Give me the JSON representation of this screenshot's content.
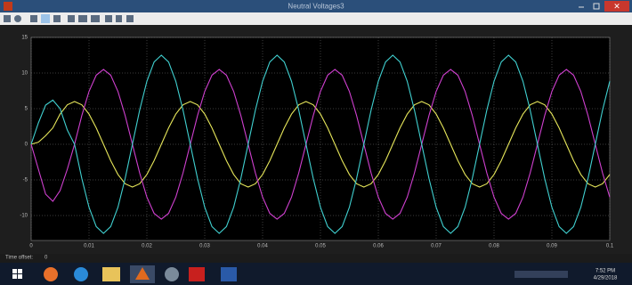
{
  "window": {
    "title": "Neutral Voltages3"
  },
  "status": {
    "label": "Time offset:",
    "value": "0"
  },
  "taskbar": {
    "time": "7:52 PM",
    "date": "4/29/2018"
  },
  "chart_data": {
    "type": "line",
    "x": [
      0,
      0.00125,
      0.0025,
      0.00375,
      0.005,
      0.00625,
      0.0075,
      0.00875,
      0.01,
      0.01125,
      0.0125,
      0.01375,
      0.015,
      0.01625,
      0.0175,
      0.01875,
      0.02,
      0.02125,
      0.0225,
      0.02375,
      0.025,
      0.02625,
      0.0275,
      0.02875,
      0.03,
      0.03125,
      0.0325,
      0.03375,
      0.035,
      0.03625,
      0.0375,
      0.03875,
      0.04,
      0.04125,
      0.0425,
      0.04375,
      0.045,
      0.04625,
      0.0475,
      0.04875,
      0.05,
      0.05125,
      0.0525,
      0.05375,
      0.055,
      0.05625,
      0.0575,
      0.05875,
      0.06,
      0.06125,
      0.0625,
      0.06375,
      0.065,
      0.06625,
      0.0675,
      0.06875,
      0.07,
      0.07125,
      0.0725,
      0.07375,
      0.075,
      0.07625,
      0.0775,
      0.07875,
      0.08,
      0.08125,
      0.0825,
      0.08375,
      0.085,
      0.08625,
      0.0875,
      0.08875,
      0.09,
      0.09125,
      0.0925,
      0.09375,
      0.095,
      0.09625,
      0.0975,
      0.09875,
      0.1
    ],
    "series": [
      {
        "color": "#e6e65a",
        "values": [
          0,
          0.3,
          1.2,
          2.3,
          4.24,
          5.54,
          6,
          5.54,
          4.24,
          2.3,
          0,
          -2.3,
          -4.24,
          -5.54,
          -6,
          -5.54,
          -4.24,
          -2.3,
          0,
          2.3,
          4.24,
          5.54,
          6,
          5.54,
          4.24,
          2.3,
          0,
          -2.3,
          -4.24,
          -5.54,
          -6,
          -5.54,
          -4.24,
          -2.3,
          0,
          2.3,
          4.24,
          5.54,
          6,
          5.54,
          4.24,
          2.3,
          0,
          -2.3,
          -4.24,
          -5.54,
          -6,
          -5.54,
          -4.24,
          -2.3,
          0,
          2.3,
          4.24,
          5.54,
          6,
          5.54,
          4.24,
          2.3,
          0,
          -2.3,
          -4.24,
          -5.54,
          -6,
          -5.54,
          -4.24,
          -2.3,
          0,
          2.3,
          4.24,
          5.54,
          6,
          5.54,
          4.24,
          2.3,
          0,
          -2.3,
          -4.24,
          -5.54,
          -6,
          -5.54,
          -4.24
        ]
      },
      {
        "color": "#d040d0",
        "values": [
          0,
          -3.5,
          -7,
          -8,
          -6.5,
          -3.5,
          0,
          4.02,
          7.42,
          9.7,
          10.5,
          9.7,
          7.42,
          4.02,
          0,
          -4.02,
          -7.42,
          -9.7,
          -10.5,
          -9.7,
          -7.42,
          -4.02,
          0,
          4.02,
          7.42,
          9.7,
          10.5,
          9.7,
          7.42,
          4.02,
          0,
          -4.02,
          -7.42,
          -9.7,
          -10.5,
          -9.7,
          -7.42,
          -4.02,
          0,
          4.02,
          7.42,
          9.7,
          10.5,
          9.7,
          7.42,
          4.02,
          0,
          -4.02,
          -7.42,
          -9.7,
          -10.5,
          -9.7,
          -7.42,
          -4.02,
          0,
          4.02,
          7.42,
          9.7,
          10.5,
          9.7,
          7.42,
          4.02,
          0,
          -4.02,
          -7.42,
          -9.7,
          -10.5,
          -9.7,
          -7.42,
          -4.02,
          0,
          4.02,
          7.42,
          9.7,
          10.5,
          9.7,
          7.42,
          4.02,
          0,
          -4.02,
          -7.42
        ]
      },
      {
        "color": "#40d0d0",
        "values": [
          0,
          3,
          5.5,
          6.2,
          5,
          2,
          0,
          -4.78,
          -8.84,
          -11.55,
          -12.5,
          -11.55,
          -8.84,
          -4.78,
          0,
          4.78,
          8.84,
          11.55,
          12.5,
          11.55,
          8.84,
          4.78,
          0,
          -4.78,
          -8.84,
          -11.55,
          -12.5,
          -11.55,
          -8.84,
          -4.78,
          0,
          4.78,
          8.84,
          11.55,
          12.5,
          11.55,
          8.84,
          4.78,
          0,
          -4.78,
          -8.84,
          -11.55,
          -12.5,
          -11.55,
          -8.84,
          -4.78,
          0,
          4.78,
          8.84,
          11.55,
          12.5,
          11.55,
          8.84,
          4.78,
          0,
          -4.78,
          -8.84,
          -11.55,
          -12.5,
          -11.55,
          -8.84,
          -4.78,
          0,
          4.78,
          8.84,
          11.55,
          12.5,
          11.55,
          8.84,
          4.78,
          0,
          -4.78,
          -8.84,
          -11.55,
          -12.5,
          -11.55,
          -8.84,
          -4.78,
          0,
          4.78,
          8.84
        ]
      }
    ],
    "xlim": [
      0,
      0.1
    ],
    "ylim": [
      -13.5,
      15
    ],
    "xticks": [
      0,
      0.01,
      0.02,
      0.03,
      0.04,
      0.05,
      0.06,
      0.07,
      0.08,
      0.09,
      0.1
    ],
    "yticks": [
      -10,
      -5,
      0,
      5,
      10,
      15
    ],
    "grid": true
  }
}
